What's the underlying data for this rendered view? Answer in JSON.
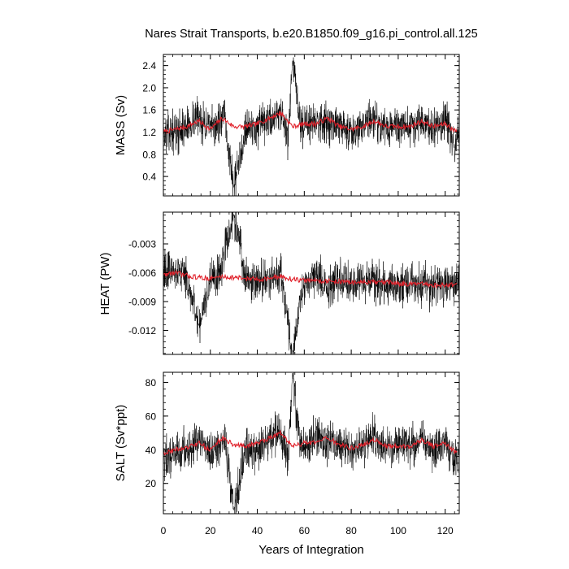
{
  "chart_data": {
    "type": "line",
    "title": "Nares Strait Transports, b.e20.B1850.f09_g16.pi_control.all.125",
    "xlabel": "Years of Integration",
    "xlim": [
      0,
      126
    ],
    "xticks": [
      0,
      20,
      40,
      60,
      80,
      100,
      120
    ],
    "colors": {
      "raw": "#000000",
      "smoothed": "#e0202a"
    },
    "panels": [
      {
        "id": "mass",
        "ylabel": "MASS (Sv)",
        "ylim": [
          0.05,
          2.6
        ],
        "yticks": [
          "0.4",
          "0.8",
          "1.2",
          "1.6",
          "2.0",
          "2.4"
        ],
        "series": [
          {
            "type": "monthly",
            "color": "#000000",
            "x": [
              0,
              5,
              10,
              14.5,
              20,
              26,
              30,
              35,
              40,
              45,
              50,
              53,
              55,
              58,
              60,
              65,
              70,
              75,
              80,
              85,
              90,
              95,
              100,
              105,
              110,
              115,
              120,
              124,
              126
            ],
            "y": [
              1.15,
              1.2,
              1.3,
              1.5,
              1.25,
              1.45,
              0.2,
              1.3,
              1.25,
              1.4,
              1.6,
              1.0,
              2.5,
              1.4,
              1.3,
              1.45,
              1.35,
              1.3,
              1.2,
              1.35,
              1.45,
              1.25,
              1.3,
              1.3,
              1.4,
              1.25,
              1.4,
              0.95,
              1.25
            ]
          },
          {
            "type": "annual-mean",
            "color": "#e0202a",
            "x": [
              0,
              5,
              10,
              15,
              20,
              25,
              30,
              35,
              40,
              45,
              50,
              55,
              60,
              65,
              70,
              75,
              80,
              85,
              90,
              95,
              100,
              105,
              110,
              115,
              120,
              125
            ],
            "y": [
              1.2,
              1.25,
              1.3,
              1.4,
              1.25,
              1.45,
              1.3,
              1.3,
              1.35,
              1.45,
              1.55,
              1.3,
              1.35,
              1.35,
              1.45,
              1.3,
              1.25,
              1.3,
              1.4,
              1.3,
              1.3,
              1.3,
              1.4,
              1.3,
              1.35,
              1.2
            ]
          }
        ]
      },
      {
        "id": "heat",
        "ylabel": "HEAT (PW)",
        "ylim": [
          -0.0145,
          0.0003
        ],
        "yticks": [
          "-0.012",
          "-0.009",
          "-0.006",
          "-0.003"
        ],
        "series": [
          {
            "type": "monthly",
            "color": "#000000",
            "x": [
              0,
              5,
              10,
              15,
              20,
              25,
              30,
              35,
              40,
              45,
              50,
              55,
              60,
              65,
              70,
              75,
              80,
              85,
              90,
              95,
              100,
              105,
              110,
              115,
              120,
              126
            ],
            "y": [
              -0.006,
              -0.0055,
              -0.0065,
              -0.0115,
              -0.007,
              -0.0055,
              0.0001,
              -0.0068,
              -0.007,
              -0.0065,
              -0.006,
              -0.0145,
              -0.007,
              -0.0062,
              -0.0075,
              -0.0068,
              -0.007,
              -0.0072,
              -0.0068,
              -0.0072,
              -0.0075,
              -0.007,
              -0.0072,
              -0.0075,
              -0.0072,
              -0.007
            ]
          },
          {
            "type": "annual-mean",
            "color": "#e0202a",
            "x": [
              0,
              5,
              10,
              15,
              20,
              25,
              30,
              35,
              40,
              45,
              50,
              55,
              60,
              65,
              70,
              75,
              80,
              85,
              90,
              95,
              100,
              105,
              110,
              115,
              120,
              125
            ],
            "y": [
              -0.0062,
              -0.006,
              -0.0063,
              -0.0065,
              -0.0066,
              -0.0064,
              -0.0065,
              -0.0066,
              -0.0067,
              -0.0066,
              -0.0064,
              -0.0067,
              -0.0068,
              -0.0068,
              -0.0069,
              -0.0069,
              -0.007,
              -0.007,
              -0.007,
              -0.007,
              -0.0071,
              -0.0072,
              -0.0072,
              -0.0073,
              -0.0073,
              -0.0072
            ]
          }
        ]
      },
      {
        "id": "salt",
        "ylabel": "SALT (Sv*ppt)",
        "ylim": [
          2,
          86
        ],
        "yticks": [
          "20",
          "40",
          "60",
          "80"
        ],
        "series": [
          {
            "type": "monthly",
            "color": "#000000",
            "x": [
              0,
              5,
              10,
              15,
              20,
              26,
              30,
              35,
              40,
              45,
              50,
              53,
              55,
              58,
              60,
              65,
              70,
              75,
              80,
              85,
              90,
              95,
              100,
              105,
              110,
              115,
              120,
              124,
              126
            ],
            "y": [
              35,
              38,
              40,
              45,
              38,
              45,
              4,
              40,
              40,
              45,
              50,
              35,
              86,
              45,
              42,
              47,
              44,
              42,
              40,
              44,
              47,
              40,
              42,
              42,
              45,
              40,
              46,
              33,
              40
            ]
          },
          {
            "type": "annual-mean",
            "color": "#e0202a",
            "x": [
              0,
              5,
              10,
              15,
              20,
              25,
              30,
              35,
              40,
              45,
              50,
              55,
              60,
              65,
              70,
              75,
              80,
              85,
              90,
              95,
              100,
              105,
              110,
              115,
              120,
              125
            ],
            "y": [
              38,
              40,
              41,
              44,
              40,
              47,
              43,
              42,
              44,
              47,
              50,
              42,
              44,
              44,
              47,
              43,
              41,
              43,
              46,
              42,
              42,
              42,
              46,
              42,
              44,
              38
            ]
          }
        ]
      }
    ]
  }
}
